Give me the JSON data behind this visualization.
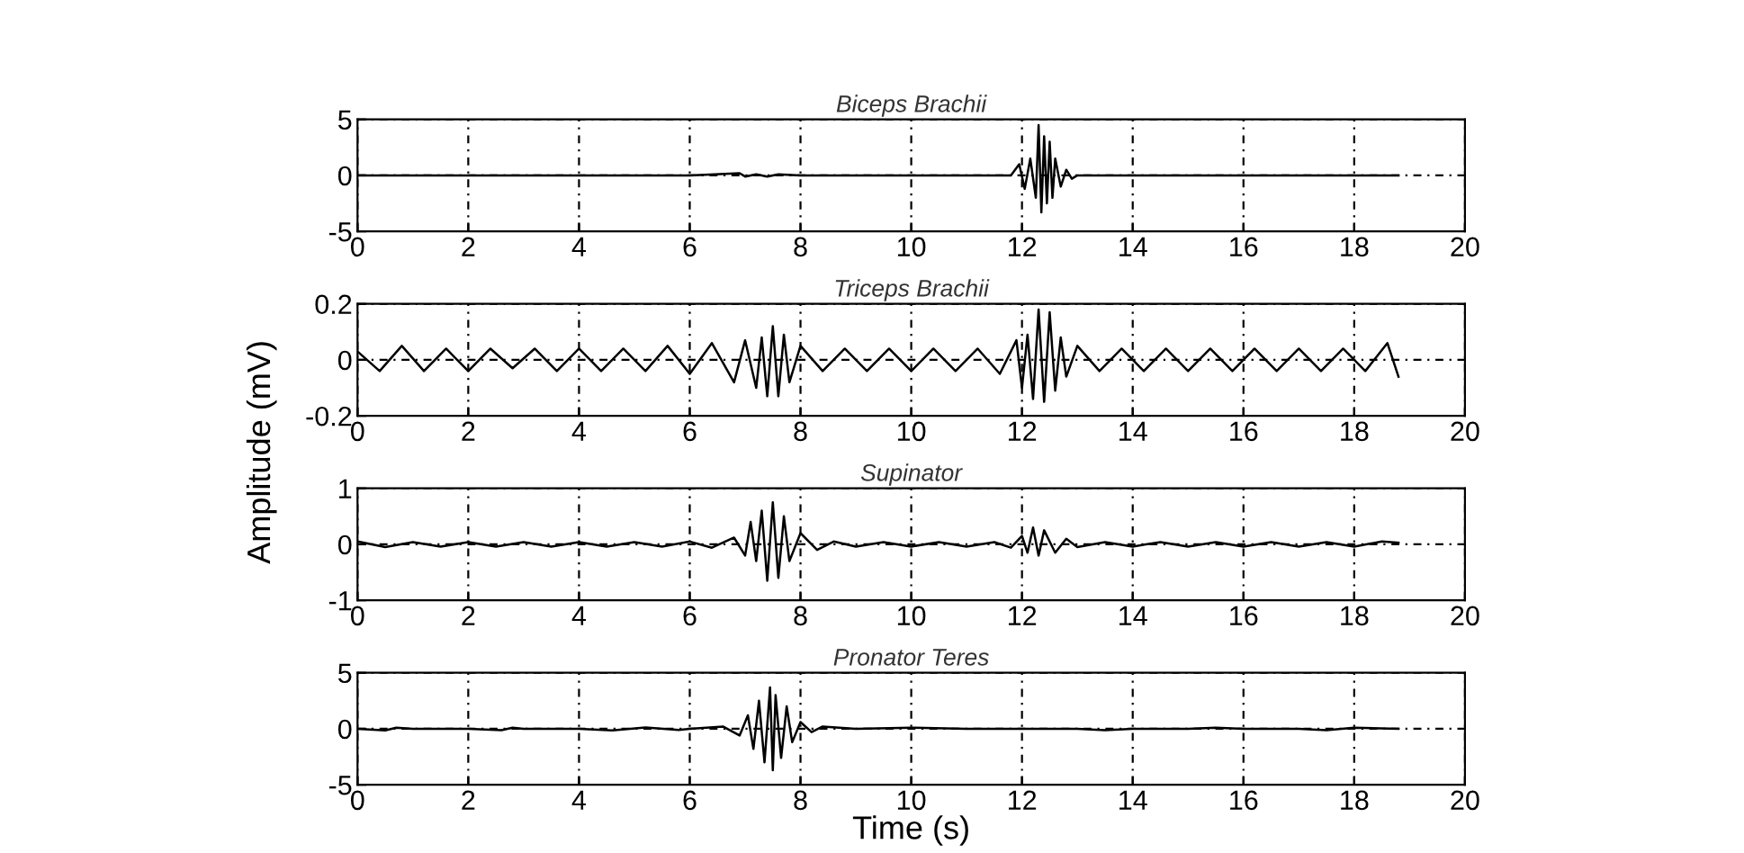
{
  "chart_data": [
    {
      "type": "line",
      "title": "Biceps Brachii",
      "xlim": [
        0,
        20
      ],
      "ylim": [
        -5,
        5
      ],
      "xticks": [
        0,
        2,
        4,
        6,
        8,
        10,
        12,
        14,
        16,
        18,
        20
      ],
      "yticks": [
        -5,
        0,
        5
      ],
      "grid": true,
      "series": [
        {
          "color": "#000000",
          "x": [
            0,
            1,
            2,
            3,
            4,
            5,
            6,
            6.9,
            7.0,
            7.2,
            7.4,
            7.6,
            8,
            9,
            10,
            11,
            11.8,
            11.95,
            12.05,
            12.15,
            12.25,
            12.3,
            12.35,
            12.4,
            12.45,
            12.5,
            12.55,
            12.6,
            12.7,
            12.8,
            12.9,
            13,
            14,
            15,
            16,
            17,
            18,
            18.8
          ],
          "values": [
            0,
            0,
            0,
            0,
            0,
            0,
            0,
            0.2,
            -0.1,
            0.1,
            -0.1,
            0.1,
            0,
            0,
            0,
            0,
            0,
            1,
            -1.2,
            1.5,
            -2,
            4.5,
            -3.3,
            3.5,
            -2.5,
            3,
            -2,
            1.5,
            -1,
            0.5,
            -0.3,
            0,
            0,
            0,
            0,
            0,
            0,
            0
          ]
        }
      ]
    },
    {
      "type": "line",
      "title": "Triceps Brachii",
      "ylabel": "Amplitude (mV)",
      "xlim": [
        0,
        20
      ],
      "ylim": [
        -0.2,
        0.2
      ],
      "xticks": [
        0,
        2,
        4,
        6,
        8,
        10,
        12,
        14,
        16,
        18,
        20
      ],
      "yticks": [
        -0.2,
        0,
        0.2
      ],
      "grid": true,
      "series": [
        {
          "color": "#000000",
          "x": [
            0,
            0.4,
            0.8,
            1.2,
            1.6,
            2,
            2.4,
            2.8,
            3.2,
            3.6,
            4,
            4.4,
            4.8,
            5.2,
            5.6,
            6,
            6.4,
            6.8,
            7.0,
            7.2,
            7.3,
            7.4,
            7.5,
            7.6,
            7.7,
            7.8,
            8,
            8.4,
            8.8,
            9.2,
            9.6,
            10,
            10.4,
            10.8,
            11.2,
            11.6,
            11.9,
            12.0,
            12.1,
            12.2,
            12.3,
            12.4,
            12.5,
            12.6,
            12.7,
            12.8,
            13,
            13.4,
            13.8,
            14.2,
            14.6,
            15,
            15.4,
            15.8,
            16.2,
            16.6,
            17,
            17.4,
            17.8,
            18.2,
            18.6,
            18.8
          ],
          "values": [
            0.03,
            -0.04,
            0.05,
            -0.04,
            0.04,
            -0.04,
            0.04,
            -0.03,
            0.04,
            -0.04,
            0.04,
            -0.04,
            0.04,
            -0.04,
            0.05,
            -0.05,
            0.06,
            -0.08,
            0.07,
            -0.1,
            0.08,
            -0.13,
            0.12,
            -0.13,
            0.09,
            -0.08,
            0.05,
            -0.04,
            0.04,
            -0.04,
            0.04,
            -0.04,
            0.04,
            -0.04,
            0.04,
            -0.05,
            0.07,
            -0.1,
            0.09,
            -0.14,
            0.18,
            -0.15,
            0.17,
            -0.11,
            0.08,
            -0.06,
            0.05,
            -0.04,
            0.04,
            -0.04,
            0.04,
            -0.04,
            0.04,
            -0.04,
            0.04,
            -0.04,
            0.04,
            -0.04,
            0.04,
            -0.04,
            0.06,
            -0.06
          ]
        }
      ]
    },
    {
      "type": "line",
      "title": "Supinator",
      "xlim": [
        0,
        20
      ],
      "ylim": [
        -1,
        1
      ],
      "xticks": [
        0,
        2,
        4,
        6,
        8,
        10,
        12,
        14,
        16,
        18,
        20
      ],
      "yticks": [
        -1,
        0,
        1
      ],
      "grid": true,
      "series": [
        {
          "color": "#000000",
          "x": [
            0,
            0.5,
            1,
            1.5,
            2,
            2.5,
            3,
            3.5,
            4,
            4.5,
            5,
            5.5,
            6,
            6.4,
            6.8,
            7.0,
            7.1,
            7.2,
            7.3,
            7.4,
            7.5,
            7.6,
            7.7,
            7.8,
            8,
            8.3,
            8.6,
            9,
            9.5,
            10,
            10.5,
            11,
            11.5,
            11.8,
            12.0,
            12.1,
            12.2,
            12.3,
            12.4,
            12.6,
            12.8,
            13,
            13.5,
            14,
            14.5,
            15,
            15.5,
            16,
            16.5,
            17,
            17.5,
            18,
            18.5,
            18.8
          ],
          "values": [
            0.05,
            -0.05,
            0.04,
            -0.04,
            0.04,
            -0.04,
            0.04,
            -0.04,
            0.04,
            -0.04,
            0.04,
            -0.04,
            0.05,
            -0.06,
            0.12,
            -0.2,
            0.4,
            -0.3,
            0.6,
            -0.65,
            0.75,
            -0.6,
            0.5,
            -0.3,
            0.2,
            -0.1,
            0.05,
            -0.04,
            0.04,
            -0.04,
            0.04,
            -0.04,
            0.04,
            -0.06,
            0.15,
            -0.15,
            0.3,
            -0.2,
            0.25,
            -0.15,
            0.1,
            -0.05,
            0.04,
            -0.04,
            0.04,
            -0.04,
            0.04,
            -0.04,
            0.04,
            -0.04,
            0.04,
            -0.04,
            0.05,
            0.03
          ]
        }
      ]
    },
    {
      "type": "line",
      "title": "Pronator Teres",
      "xlabel": "Time (s)",
      "xlim": [
        0,
        20
      ],
      "ylim": [
        -5,
        5
      ],
      "xticks": [
        0,
        2,
        4,
        6,
        8,
        10,
        12,
        14,
        16,
        18,
        20
      ],
      "yticks": [
        -5,
        0,
        5
      ],
      "grid": true,
      "series": [
        {
          "color": "#000000",
          "x": [
            0,
            0.5,
            0.7,
            1,
            2,
            2.6,
            2.8,
            3,
            4,
            4.6,
            5.2,
            5.8,
            6,
            6.6,
            6.9,
            7.05,
            7.15,
            7.25,
            7.35,
            7.45,
            7.5,
            7.55,
            7.65,
            7.75,
            7.85,
            8,
            8.2,
            8.4,
            9,
            10,
            11,
            12,
            13,
            13.5,
            14,
            15,
            15.5,
            16,
            17,
            17.5,
            18,
            18.8
          ],
          "values": [
            0,
            -0.15,
            0.1,
            0,
            0,
            -0.12,
            0.1,
            0,
            0,
            -0.15,
            0.12,
            -0.1,
            0,
            0.2,
            -0.6,
            1.2,
            -1.8,
            2.5,
            -3,
            3.7,
            -3.7,
            3,
            -2.6,
            2,
            -1.2,
            0.6,
            -0.3,
            0.2,
            0,
            0.1,
            0,
            0,
            0,
            -0.12,
            0,
            0,
            0.1,
            0,
            0,
            -0.12,
            0.1,
            0
          ]
        }
      ]
    }
  ]
}
